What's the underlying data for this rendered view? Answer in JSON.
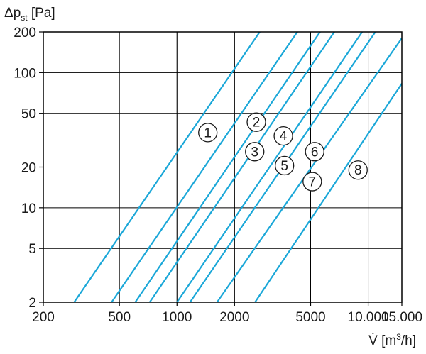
{
  "chart_data": {
    "type": "line",
    "x_scale": "log",
    "y_scale": "log",
    "grid": true,
    "xlim": [
      200,
      15000
    ],
    "ylim": [
      2,
      200
    ],
    "x_ticks": [
      200,
      500,
      1000,
      2000,
      5000,
      10000,
      15000
    ],
    "x_tick_labels": [
      "200",
      "500",
      "1000",
      "2000",
      "5000",
      "10.000",
      "15.000"
    ],
    "y_ticks": [
      2,
      5,
      10,
      20,
      50,
      100,
      200
    ],
    "y_tick_labels": [
      "2",
      "5",
      "10",
      "20",
      "50",
      "100",
      "200"
    ],
    "x_grid_minor": [
      1000,
      2000
    ],
    "ylabel": {
      "main": "Δp",
      "sub": "st",
      "unit": " [Pa]"
    },
    "xlabel": {
      "main": "V̇ [m",
      "sup": "3",
      "unit": "/h]"
    },
    "colors": {
      "line": "#1aa7d8",
      "grid": "#000000",
      "grid_minor": "#9a9a9a"
    },
    "series": [
      {
        "label": "1",
        "x": [
          290,
          2710
        ],
        "y": [
          2,
          200
        ],
        "label_at": [
          1450,
          36
        ]
      },
      {
        "label": "2",
        "x": [
          455,
          4260
        ],
        "y": [
          2,
          200
        ],
        "label_at": [
          2600,
          43
        ]
      },
      {
        "label": "3",
        "x": [
          605,
          5600
        ],
        "y": [
          2,
          200
        ],
        "label_at": [
          2550,
          26
        ]
      },
      {
        "label": "4",
        "x": [
          720,
          6650
        ],
        "y": [
          2,
          200
        ],
        "label_at": [
          3600,
          34
        ]
      },
      {
        "label": "5",
        "x": [
          1000,
          9300
        ],
        "y": [
          2,
          200
        ],
        "label_at": [
          3650,
          20.5
        ]
      },
      {
        "label": "6",
        "x": [
          1170,
          10900
        ],
        "y": [
          2,
          200
        ],
        "label_at": [
          5250,
          26
        ]
      },
      {
        "label": "7",
        "x": [
          1620,
          15000
        ],
        "y": [
          2,
          180
        ],
        "label_at": [
          5100,
          15.6
        ]
      },
      {
        "label": "8",
        "x": [
          2560,
          15000
        ],
        "y": [
          2,
          83
        ],
        "label_at": [
          8850,
          19
        ]
      }
    ]
  }
}
